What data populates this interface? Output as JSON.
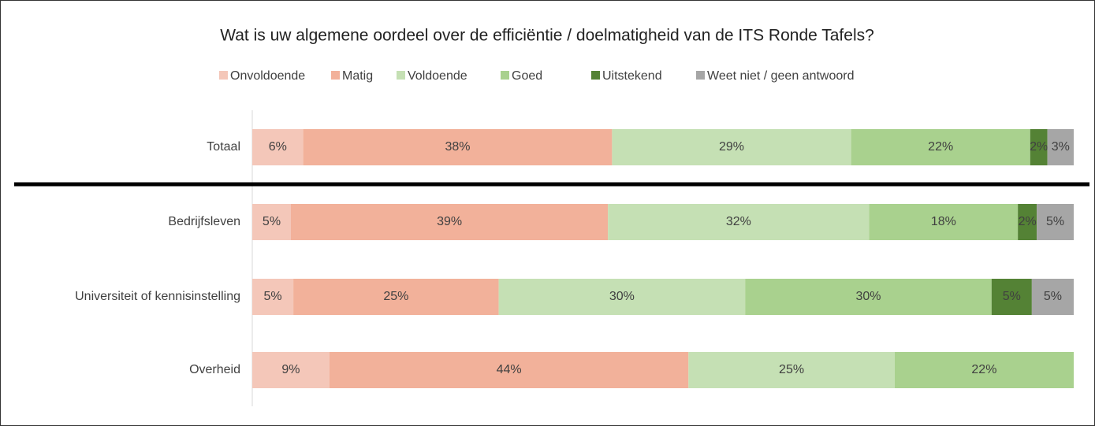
{
  "chart_data": {
    "type": "stacked_barh",
    "title": "Wat is uw algemene oordeel over de efficiëntie / doelmatigheid van de ITS Ronde Tafels?",
    "categories": [
      "Totaal",
      "Bedrijfsleven",
      "Universiteit of kennisinstelling",
      "Overheid"
    ],
    "xlim": [
      0,
      100
    ],
    "series": [
      {
        "name": "Onvoldoende",
        "color": "#f4c7b9",
        "values": [
          6.2,
          4.7,
          5.0,
          9.4
        ],
        "value_labels": [
          "6%",
          "5%",
          "5%",
          "9%"
        ]
      },
      {
        "name": "Matig",
        "color": "#f2b19a",
        "values": [
          37.6,
          38.6,
          25.0,
          43.7
        ],
        "value_labels": [
          "38%",
          "39%",
          "25%",
          "44%"
        ]
      },
      {
        "name": "Voldoende",
        "color": "#c5e0b4",
        "values": [
          29.1,
          31.8,
          30.0,
          25.1
        ],
        "value_labels": [
          "29%",
          "32%",
          "30%",
          "25%"
        ]
      },
      {
        "name": "Goed",
        "color": "#a9d18e",
        "values": [
          21.8,
          18.1,
          30.0,
          21.8
        ],
        "value_labels": [
          "22%",
          "18%",
          "30%",
          "22%"
        ]
      },
      {
        "name": "Uitstekend",
        "color": "#548235",
        "values": [
          2.1,
          2.3,
          4.9,
          null
        ],
        "value_labels": [
          "2%",
          "2%",
          "5%",
          null
        ]
      },
      {
        "name": "Weet niet / geen antwoord",
        "color": "#a6a6a6",
        "values": [
          3.2,
          4.5,
          5.1,
          null
        ],
        "value_labels": [
          "3%",
          "5%",
          "5%",
          null
        ]
      }
    ]
  }
}
